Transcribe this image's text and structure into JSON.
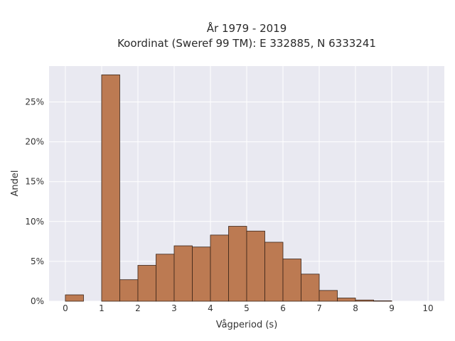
{
  "chart_data": {
    "type": "bar",
    "title": [
      "År 1979 - 2019",
      "Koordinat (Sweref 99 TM): E 332885, N 6333241"
    ],
    "xlabel": "Vågperiod (s)",
    "ylabel": "Andel",
    "xlim": [
      -0.45,
      10.45
    ],
    "ylim": [
      0,
      29.5
    ],
    "xticks": [
      0,
      1,
      2,
      3,
      4,
      5,
      6,
      7,
      8,
      9,
      10
    ],
    "yticks": [
      0,
      5,
      10,
      15,
      20,
      25
    ],
    "ytick_labels": [
      "0%",
      "5%",
      "10%",
      "15%",
      "20%",
      "25%"
    ],
    "grid": true,
    "bar_color": "#bc7a52",
    "bar_edge_color": "#3a2418",
    "plot_background": "#e9e9f1",
    "bins": [
      {
        "x0": 0.0,
        "x1": 0.5,
        "value": 0.8
      },
      {
        "x0": 1.0,
        "x1": 1.5,
        "value": 28.4
      },
      {
        "x0": 1.5,
        "x1": 2.0,
        "value": 2.7
      },
      {
        "x0": 2.0,
        "x1": 2.5,
        "value": 4.5
      },
      {
        "x0": 2.5,
        "x1": 3.0,
        "value": 5.9
      },
      {
        "x0": 3.0,
        "x1": 3.5,
        "value": 6.95
      },
      {
        "x0": 3.5,
        "x1": 4.0,
        "value": 6.8
      },
      {
        "x0": 4.0,
        "x1": 4.5,
        "value": 8.3
      },
      {
        "x0": 4.5,
        "x1": 5.0,
        "value": 9.4
      },
      {
        "x0": 5.0,
        "x1": 5.5,
        "value": 8.8
      },
      {
        "x0": 5.5,
        "x1": 6.0,
        "value": 7.4
      },
      {
        "x0": 6.0,
        "x1": 6.5,
        "value": 5.3
      },
      {
        "x0": 6.5,
        "x1": 7.0,
        "value": 3.4
      },
      {
        "x0": 7.0,
        "x1": 7.5,
        "value": 1.35
      },
      {
        "x0": 7.5,
        "x1": 8.0,
        "value": 0.4
      },
      {
        "x0": 8.0,
        "x1": 8.5,
        "value": 0.15
      },
      {
        "x0": 8.5,
        "x1": 9.0,
        "value": 0.05
      }
    ]
  }
}
